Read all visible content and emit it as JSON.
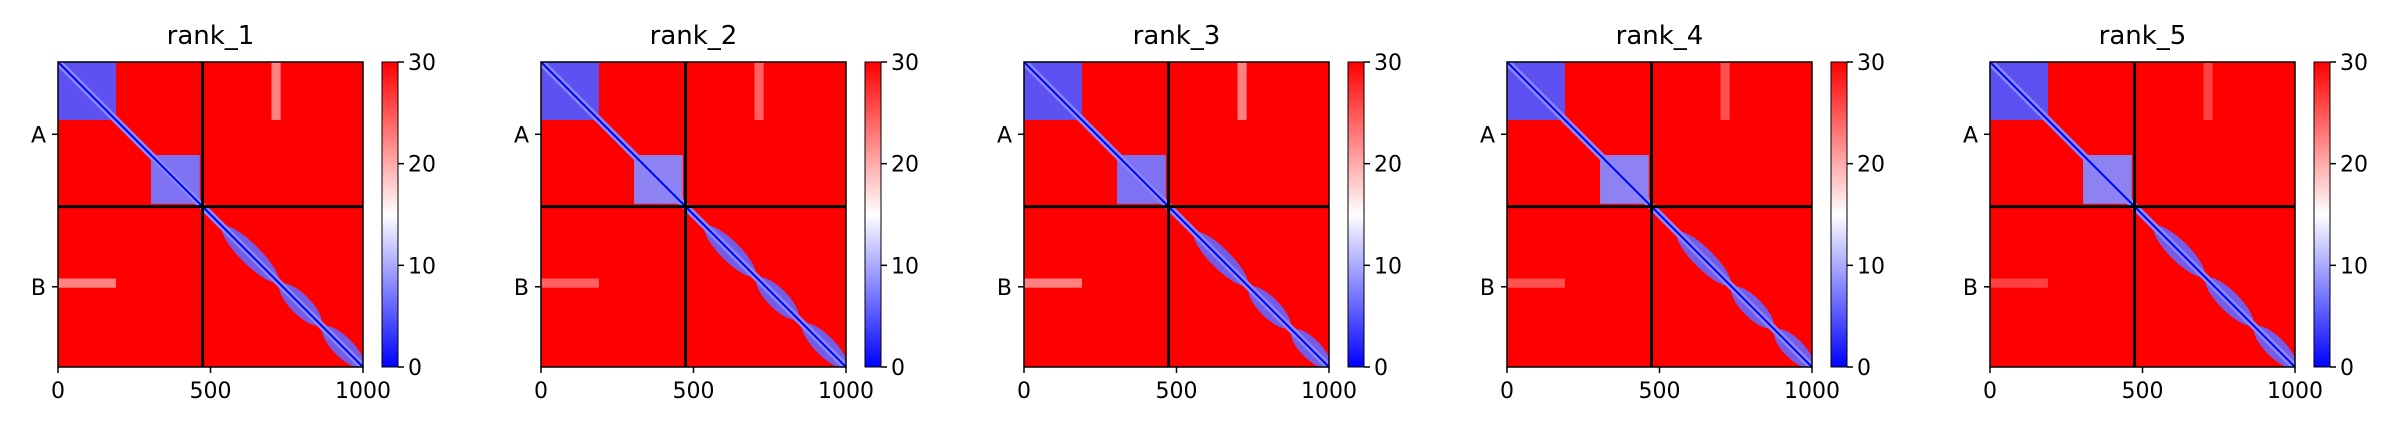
{
  "figure": {
    "panels": [
      {
        "title": "rank_1"
      },
      {
        "title": "rank_2"
      },
      {
        "title": "rank_3"
      },
      {
        "title": "rank_4"
      },
      {
        "title": "rank_5"
      }
    ]
  },
  "colors": {
    "low": "#0000ff",
    "mid": "#ffffff",
    "high": "#ff0000",
    "divider": "#000000"
  },
  "chart_data": [
    {
      "type": "heatmap",
      "title": "rank_1",
      "xlim": [
        0,
        1000
      ],
      "ylim": [
        1000,
        0
      ],
      "x_ticks": [
        0,
        500,
        1000
      ],
      "y_tick_labels": [
        "A",
        "B"
      ],
      "chain_boundary": 474,
      "colorbar": {
        "min": 0,
        "max": 30,
        "ticks": [
          0,
          10,
          20,
          30
        ],
        "colormap": "bwr"
      },
      "low_value_regions": [
        {
          "x": [
            0,
            190
          ],
          "y": [
            0,
            190
          ],
          "value": 5
        },
        {
          "x": [
            305,
            465
          ],
          "y": [
            305,
            465
          ],
          "value": 7
        },
        {
          "x": [
            0,
            190
          ],
          "y": [
            710,
            740
          ],
          "value": 22
        },
        {
          "x": [
            700,
            730
          ],
          "y": [
            0,
            190
          ],
          "value": 22
        }
      ],
      "diagonal_domains": [
        [
          540,
          720
        ],
        [
          730,
          860
        ],
        [
          870,
          1000
        ]
      ]
    },
    {
      "type": "heatmap",
      "title": "rank_2",
      "xlim": [
        0,
        1000
      ],
      "ylim": [
        1000,
        0
      ],
      "x_ticks": [
        0,
        500,
        1000
      ],
      "y_tick_labels": [
        "A",
        "B"
      ],
      "chain_boundary": 474,
      "colorbar": {
        "min": 0,
        "max": 30,
        "ticks": [
          0,
          10,
          20,
          30
        ],
        "colormap": "bwr"
      },
      "low_value_regions": [
        {
          "x": [
            0,
            190
          ],
          "y": [
            0,
            190
          ],
          "value": 5
        },
        {
          "x": [
            305,
            465
          ],
          "y": [
            305,
            465
          ],
          "value": 8
        },
        {
          "x": [
            0,
            190
          ],
          "y": [
            710,
            740
          ],
          "value": 24
        },
        {
          "x": [
            700,
            730
          ],
          "y": [
            0,
            190
          ],
          "value": 24
        }
      ],
      "diagonal_domains": [
        [
          540,
          700
        ],
        [
          710,
          840
        ],
        [
          860,
          1000
        ]
      ]
    },
    {
      "type": "heatmap",
      "title": "rank_3",
      "xlim": [
        0,
        1000
      ],
      "ylim": [
        1000,
        0
      ],
      "x_ticks": [
        0,
        500,
        1000
      ],
      "y_tick_labels": [
        "A",
        "B"
      ],
      "chain_boundary": 474,
      "colorbar": {
        "min": 0,
        "max": 30,
        "ticks": [
          0,
          10,
          20,
          30
        ],
        "colormap": "bwr"
      },
      "low_value_regions": [
        {
          "x": [
            0,
            190
          ],
          "y": [
            0,
            190
          ],
          "value": 5
        },
        {
          "x": [
            305,
            465
          ],
          "y": [
            305,
            465
          ],
          "value": 7
        },
        {
          "x": [
            0,
            190
          ],
          "y": [
            710,
            740
          ],
          "value": 22
        },
        {
          "x": [
            700,
            730
          ],
          "y": [
            0,
            190
          ],
          "value": 22
        }
      ],
      "diagonal_domains": [
        [
          560,
          730
        ],
        [
          740,
          870
        ],
        [
          880,
          1000
        ]
      ]
    },
    {
      "type": "heatmap",
      "title": "rank_4",
      "xlim": [
        0,
        1000
      ],
      "ylim": [
        1000,
        0
      ],
      "x_ticks": [
        0,
        500,
        1000
      ],
      "y_tick_labels": [
        "A",
        "B"
      ],
      "chain_boundary": 474,
      "colorbar": {
        "min": 0,
        "max": 30,
        "ticks": [
          0,
          10,
          20,
          30
        ],
        "colormap": "bwr"
      },
      "low_value_regions": [
        {
          "x": [
            0,
            190
          ],
          "y": [
            0,
            190
          ],
          "value": 5
        },
        {
          "x": [
            305,
            465
          ],
          "y": [
            305,
            465
          ],
          "value": 8
        },
        {
          "x": [
            0,
            190
          ],
          "y": [
            710,
            740
          ],
          "value": 25
        },
        {
          "x": [
            700,
            730
          ],
          "y": [
            0,
            190
          ],
          "value": 25
        }
      ],
      "diagonal_domains": [
        [
          560,
          730
        ],
        [
          740,
          870
        ],
        [
          880,
          1000
        ]
      ]
    },
    {
      "type": "heatmap",
      "title": "rank_5",
      "xlim": [
        0,
        1000
      ],
      "ylim": [
        1000,
        0
      ],
      "x_ticks": [
        0,
        500,
        1000
      ],
      "y_tick_labels": [
        "A",
        "B"
      ],
      "chain_boundary": 474,
      "colorbar": {
        "min": 0,
        "max": 30,
        "ticks": [
          0,
          10,
          20,
          30
        ],
        "colormap": "bwr"
      },
      "low_value_regions": [
        {
          "x": [
            0,
            190
          ],
          "y": [
            0,
            190
          ],
          "value": 5
        },
        {
          "x": [
            305,
            465
          ],
          "y": [
            305,
            465
          ],
          "value": 8
        },
        {
          "x": [
            0,
            190
          ],
          "y": [
            710,
            740
          ],
          "value": 26
        },
        {
          "x": [
            700,
            730
          ],
          "y": [
            0,
            190
          ],
          "value": 26
        }
      ],
      "diagonal_domains": [
        [
          540,
          700
        ],
        [
          710,
          860
        ],
        [
          870,
          1000
        ]
      ]
    }
  ]
}
